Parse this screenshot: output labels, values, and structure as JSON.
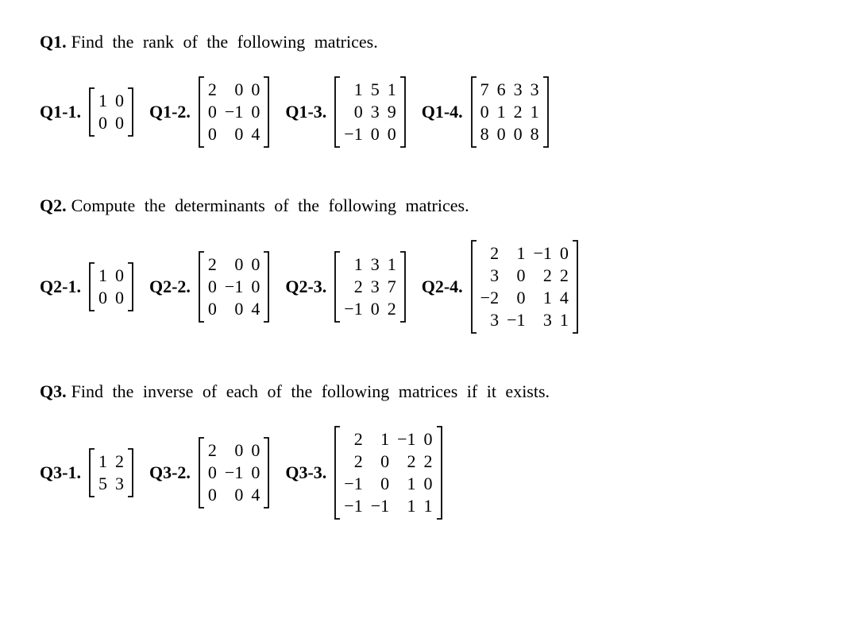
{
  "title_fontsize": 22,
  "body_fontsize": 22,
  "font_family": "Times New Roman",
  "text_color": "#000000",
  "background_color": "#ffffff",
  "questions": [
    {
      "label": "Q1.",
      "text": "Find the rank of the following matrices.",
      "subs": [
        {
          "label": "Q1-1.",
          "rows": [
            [
              "1",
              "0"
            ],
            [
              "0",
              "0"
            ]
          ],
          "cols": 2
        },
        {
          "label": "Q1-2.",
          "rows": [
            [
              "2",
              "0",
              "0"
            ],
            [
              "0",
              "−1",
              "0"
            ],
            [
              "0",
              "0",
              "4"
            ]
          ],
          "cols": 3
        },
        {
          "label": "Q1-3.",
          "rows": [
            [
              "1",
              "5",
              "1"
            ],
            [
              "0",
              "3",
              "9"
            ],
            [
              "−1",
              "0",
              "0"
            ]
          ],
          "cols": 3
        },
        {
          "label": "Q1-4.",
          "rows": [
            [
              "7",
              "6",
              "3",
              "3"
            ],
            [
              "0",
              "1",
              "2",
              "1"
            ],
            [
              "8",
              "0",
              "0",
              "8"
            ]
          ],
          "cols": 4
        }
      ]
    },
    {
      "label": "Q2.",
      "text": "Compute the determinants of the following matrices.",
      "subs": [
        {
          "label": "Q2-1.",
          "rows": [
            [
              "1",
              "0"
            ],
            [
              "0",
              "0"
            ]
          ],
          "cols": 2
        },
        {
          "label": "Q2-2.",
          "rows": [
            [
              "2",
              "0",
              "0"
            ],
            [
              "0",
              "−1",
              "0"
            ],
            [
              "0",
              "0",
              "4"
            ]
          ],
          "cols": 3
        },
        {
          "label": "Q2-3.",
          "rows": [
            [
              "1",
              "3",
              "1"
            ],
            [
              "2",
              "3",
              "7"
            ],
            [
              "−1",
              "0",
              "2"
            ]
          ],
          "cols": 3
        },
        {
          "label": "Q2-4.",
          "rows": [
            [
              "2",
              "1",
              "−1",
              "0"
            ],
            [
              "3",
              "0",
              "2",
              "2"
            ],
            [
              "−2",
              "0",
              "1",
              "4"
            ],
            [
              "3",
              "−1",
              "3",
              "1"
            ]
          ],
          "cols": 4
        }
      ]
    },
    {
      "label": "Q3.",
      "text": "Find the inverse of each of the following matrices if it exists.",
      "subs": [
        {
          "label": "Q3-1.",
          "rows": [
            [
              "1",
              "2"
            ],
            [
              "5",
              "3"
            ]
          ],
          "cols": 2
        },
        {
          "label": "Q3-2.",
          "rows": [
            [
              "2",
              "0",
              "0"
            ],
            [
              "0",
              "−1",
              "0"
            ],
            [
              "0",
              "0",
              "4"
            ]
          ],
          "cols": 3
        },
        {
          "label": "Q3-3.",
          "rows": [
            [
              "2",
              "1",
              "−1",
              "0"
            ],
            [
              "2",
              "0",
              "2",
              "2"
            ],
            [
              "−1",
              "0",
              "1",
              "0"
            ],
            [
              "−1",
              "−1",
              "1",
              "1"
            ]
          ],
          "cols": 4
        }
      ]
    }
  ]
}
